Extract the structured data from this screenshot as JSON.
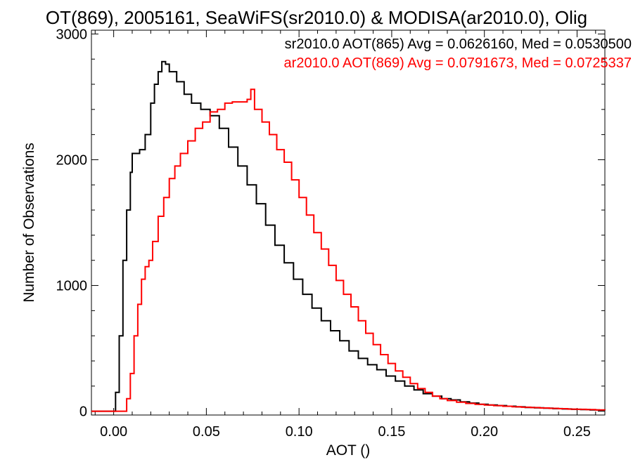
{
  "chart_data": {
    "type": "line",
    "title": "OT(869), 2005161, SeaWiFS(sr2010.0) & MODISA(ar2010.0), Olig",
    "xlabel": "AOT ()",
    "ylabel": "Number of Observations",
    "xlim": [
      -0.012,
      0.265
    ],
    "ylim": [
      -30,
      3030
    ],
    "x_ticks": [
      0.0,
      0.05,
      0.1,
      0.15,
      0.2,
      0.25
    ],
    "x_tick_labels": [
      "0.00",
      "0.05",
      "0.10",
      "0.15",
      "0.20",
      "0.25"
    ],
    "y_ticks": [
      0,
      1000,
      2000,
      3000
    ],
    "y_tick_labels": [
      "0",
      "1000",
      "2000",
      "3000"
    ],
    "grid": false,
    "legend_position": "top-right",
    "series": [
      {
        "label": "sr2010.0 AOT(865) Avg = 0.0626160, Med = 0.0530500",
        "color": "#000000",
        "points": [
          [
            -0.012,
            0
          ],
          [
            -0.001,
            0
          ],
          [
            0.001,
            150
          ],
          [
            0.003,
            600
          ],
          [
            0.005,
            1200
          ],
          [
            0.007,
            1600
          ],
          [
            0.009,
            1900
          ],
          [
            0.01,
            2050
          ],
          [
            0.014,
            2080
          ],
          [
            0.017,
            2200
          ],
          [
            0.02,
            2450
          ],
          [
            0.022,
            2600
          ],
          [
            0.024,
            2700
          ],
          [
            0.026,
            2780
          ],
          [
            0.028,
            2760
          ],
          [
            0.03,
            2700
          ],
          [
            0.034,
            2620
          ],
          [
            0.038,
            2520
          ],
          [
            0.042,
            2450
          ],
          [
            0.047,
            2400
          ],
          [
            0.052,
            2350
          ],
          [
            0.057,
            2250
          ],
          [
            0.062,
            2100
          ],
          [
            0.067,
            1950
          ],
          [
            0.072,
            1800
          ],
          [
            0.077,
            1650
          ],
          [
            0.082,
            1480
          ],
          [
            0.087,
            1320
          ],
          [
            0.092,
            1180
          ],
          [
            0.097,
            1050
          ],
          [
            0.102,
            930
          ],
          [
            0.107,
            820
          ],
          [
            0.112,
            720
          ],
          [
            0.117,
            640
          ],
          [
            0.122,
            560
          ],
          [
            0.127,
            480
          ],
          [
            0.132,
            420
          ],
          [
            0.137,
            370
          ],
          [
            0.142,
            330
          ],
          [
            0.147,
            280
          ],
          [
            0.152,
            240
          ],
          [
            0.157,
            200
          ],
          [
            0.162,
            170
          ],
          [
            0.167,
            140
          ],
          [
            0.172,
            120
          ],
          [
            0.177,
            100
          ],
          [
            0.182,
            90
          ],
          [
            0.187,
            75
          ],
          [
            0.192,
            65
          ],
          [
            0.197,
            55
          ],
          [
            0.202,
            50
          ],
          [
            0.207,
            45
          ],
          [
            0.212,
            40
          ],
          [
            0.217,
            35
          ],
          [
            0.222,
            30
          ],
          [
            0.227,
            27
          ],
          [
            0.232,
            24
          ],
          [
            0.237,
            21
          ],
          [
            0.242,
            18
          ],
          [
            0.247,
            15
          ],
          [
            0.252,
            13
          ],
          [
            0.257,
            11
          ],
          [
            0.262,
            9
          ],
          [
            0.265,
            8
          ]
        ]
      },
      {
        "label": "ar2010.0 AOT(869) Avg = 0.0791673, Med = 0.0725337",
        "color": "#ff0000",
        "points": [
          [
            -0.012,
            0
          ],
          [
            0.005,
            0
          ],
          [
            0.007,
            100
          ],
          [
            0.009,
            300
          ],
          [
            0.011,
            600
          ],
          [
            0.013,
            850
          ],
          [
            0.015,
            1050
          ],
          [
            0.017,
            1150
          ],
          [
            0.019,
            1200
          ],
          [
            0.021,
            1350
          ],
          [
            0.024,
            1550
          ],
          [
            0.027,
            1700
          ],
          [
            0.03,
            1850
          ],
          [
            0.033,
            1950
          ],
          [
            0.036,
            2050
          ],
          [
            0.04,
            2150
          ],
          [
            0.044,
            2250
          ],
          [
            0.048,
            2300
          ],
          [
            0.052,
            2380
          ],
          [
            0.056,
            2400
          ],
          [
            0.06,
            2450
          ],
          [
            0.064,
            2460
          ],
          [
            0.068,
            2460
          ],
          [
            0.072,
            2480
          ],
          [
            0.074,
            2560
          ],
          [
            0.076,
            2400
          ],
          [
            0.08,
            2300
          ],
          [
            0.084,
            2200
          ],
          [
            0.088,
            2080
          ],
          [
            0.092,
            1980
          ],
          [
            0.096,
            1840
          ],
          [
            0.1,
            1700
          ],
          [
            0.104,
            1560
          ],
          [
            0.108,
            1420
          ],
          [
            0.112,
            1290
          ],
          [
            0.116,
            1160
          ],
          [
            0.12,
            1040
          ],
          [
            0.124,
            930
          ],
          [
            0.128,
            830
          ],
          [
            0.132,
            720
          ],
          [
            0.136,
            620
          ],
          [
            0.14,
            530
          ],
          [
            0.144,
            450
          ],
          [
            0.148,
            380
          ],
          [
            0.152,
            320
          ],
          [
            0.156,
            270
          ],
          [
            0.16,
            220
          ],
          [
            0.164,
            180
          ],
          [
            0.168,
            150
          ],
          [
            0.172,
            120
          ],
          [
            0.176,
            100
          ],
          [
            0.18,
            85
          ],
          [
            0.185,
            72
          ],
          [
            0.19,
            62
          ],
          [
            0.195,
            55
          ],
          [
            0.2,
            50
          ],
          [
            0.205,
            45
          ],
          [
            0.21,
            40
          ],
          [
            0.215,
            36
          ],
          [
            0.22,
            32
          ],
          [
            0.225,
            29
          ],
          [
            0.23,
            26
          ],
          [
            0.235,
            23
          ],
          [
            0.24,
            20
          ],
          [
            0.245,
            17
          ],
          [
            0.25,
            15
          ],
          [
            0.255,
            13
          ],
          [
            0.26,
            11
          ],
          [
            0.265,
            9
          ]
        ]
      }
    ]
  }
}
